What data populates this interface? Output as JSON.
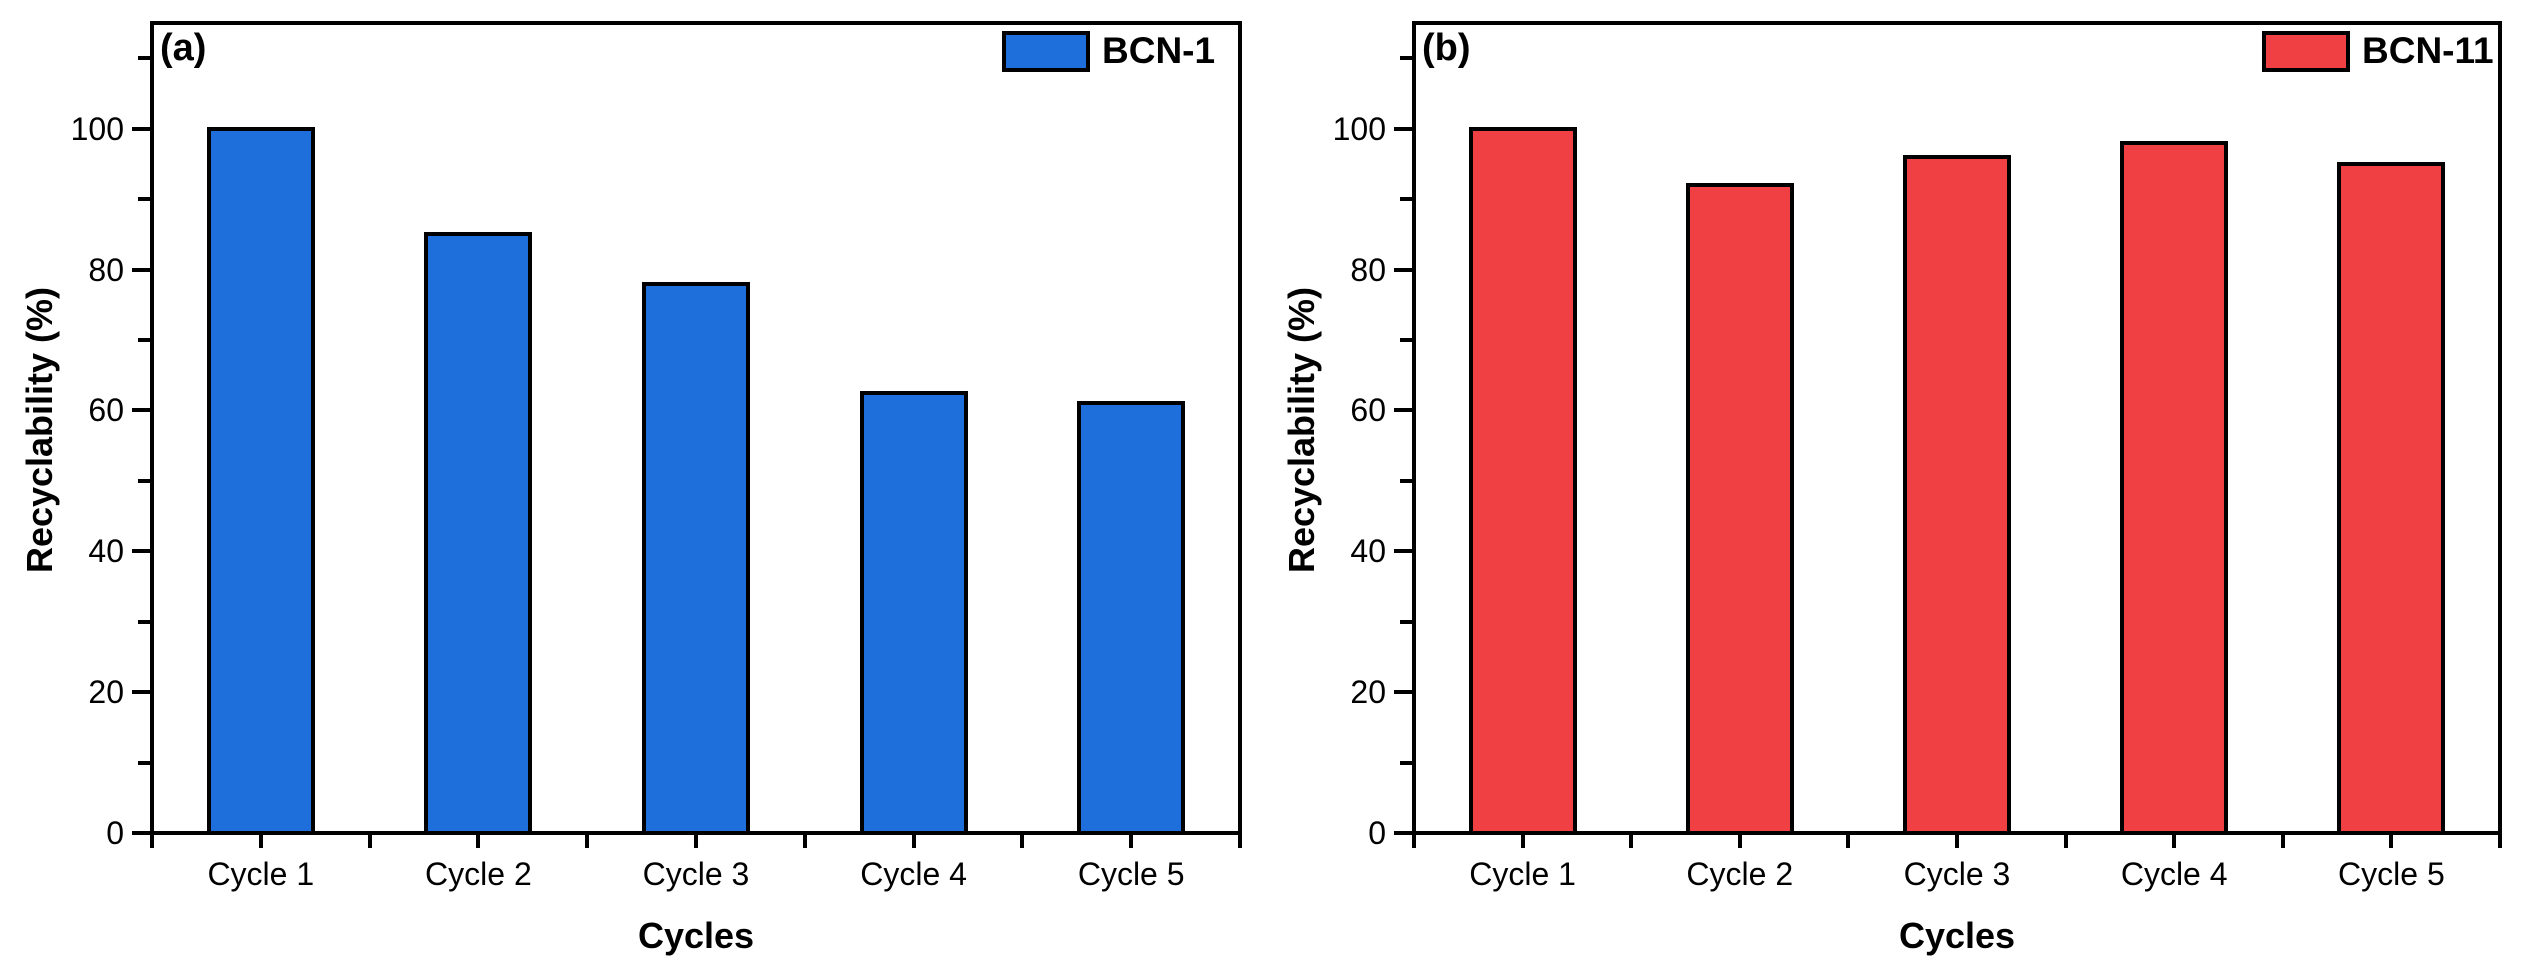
{
  "figure": {
    "background_color": "#FFFFFF",
    "axis_color": "#000000",
    "text_color": "#000000"
  },
  "chart_data": [
    {
      "type": "bar",
      "panel_label": "(a)",
      "legend": {
        "label": "BCN-1",
        "position": "top-right"
      },
      "bar_color": "#1E6FDC",
      "bar_edge_color": "#000000",
      "categories": [
        "Cycle 1",
        "Cycle 2",
        "Cycle 3",
        "Cycle 4",
        "Cycle 5"
      ],
      "values": [
        100,
        85,
        78,
        62.5,
        61
      ],
      "title": "",
      "xlabel": "Cycles",
      "ylabel": "Recyclability (%)",
      "yticks": [
        0,
        20,
        40,
        60,
        80,
        100
      ],
      "yticks_minor": [
        10,
        30,
        50,
        70,
        90,
        110
      ],
      "ylim": [
        0,
        115
      ],
      "grid": false,
      "legend_position": "top-right"
    },
    {
      "type": "bar",
      "panel_label": "(b)",
      "legend": {
        "label": "BCN-11",
        "position": "top-right"
      },
      "bar_color": "#F04044",
      "bar_edge_color": "#000000",
      "categories": [
        "Cycle 1",
        "Cycle 2",
        "Cycle 3",
        "Cycle 4",
        "Cycle 5"
      ],
      "values": [
        100,
        92,
        96,
        98,
        95
      ],
      "title": "",
      "xlabel": "Cycles",
      "ylabel": "Recyclability (%)",
      "yticks": [
        0,
        20,
        40,
        60,
        80,
        100
      ],
      "yticks_minor": [
        10,
        30,
        50,
        70,
        90,
        110
      ],
      "ylim": [
        0,
        115
      ],
      "grid": false,
      "legend_position": "top-right"
    }
  ]
}
